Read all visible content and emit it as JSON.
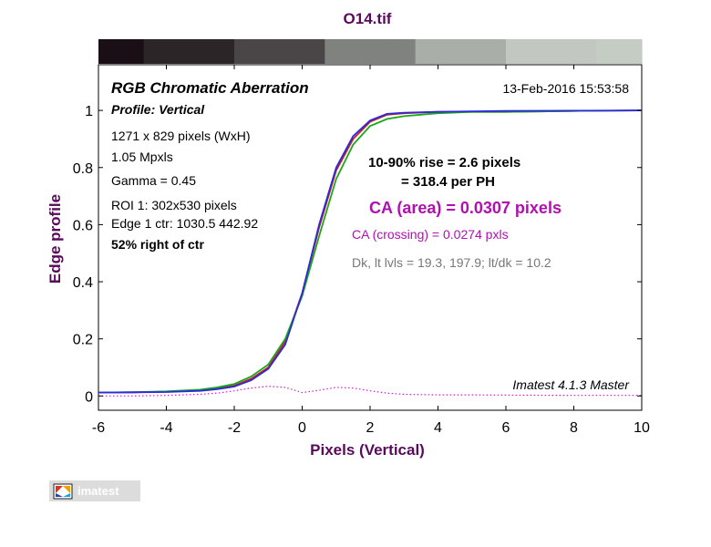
{
  "window": {
    "file_title": "O14.tif"
  },
  "chart_data": {
    "type": "line",
    "title": "O14.tif",
    "xlabel": "Pixels (Vertical)",
    "ylabel": "Edge profile",
    "xlim": [
      -6,
      10
    ],
    "ylim": [
      -0.05,
      1.16
    ],
    "x_ticks": [
      -6,
      -4,
      -2,
      0,
      2,
      4,
      6,
      8,
      10
    ],
    "y_ticks": [
      0,
      0.2,
      0.4,
      0.6,
      0.8,
      1
    ],
    "grid": false,
    "legend": "none",
    "gradient_strip": [
      "#1a0f15",
      "#2c2527",
      "#4a4546",
      "#7f827e",
      "#a9aea8",
      "#c2c8c1",
      "#c5ccc4"
    ],
    "x": [
      -6,
      -5,
      -4,
      -3,
      -2.5,
      -2,
      -1.5,
      -1,
      -0.5,
      0,
      0.5,
      1,
      1.5,
      2,
      2.5,
      3,
      4,
      5,
      6,
      8,
      10
    ],
    "series": [
      {
        "color": "#d01a1a",
        "values": [
          0.012,
          0.013,
          0.015,
          0.02,
          0.026,
          0.036,
          0.06,
          0.1,
          0.19,
          0.36,
          0.59,
          0.79,
          0.9,
          0.96,
          0.985,
          0.99,
          0.995,
          0.995,
          0.995,
          0.998,
          1.0
        ]
      },
      {
        "color": "#18a818",
        "values": [
          0.012,
          0.013,
          0.016,
          0.022,
          0.03,
          0.042,
          0.068,
          0.11,
          0.2,
          0.35,
          0.56,
          0.76,
          0.88,
          0.945,
          0.97,
          0.98,
          0.99,
          0.995,
          0.995,
          0.998,
          1.0
        ]
      },
      {
        "color": "#2a2ae0",
        "values": [
          0.012,
          0.013,
          0.014,
          0.018,
          0.024,
          0.033,
          0.055,
          0.095,
          0.18,
          0.36,
          0.6,
          0.8,
          0.91,
          0.965,
          0.988,
          0.992,
          0.995,
          0.997,
          0.998,
          0.999,
          1.0
        ]
      },
      {
        "color": "#cc20cc",
        "dashed": true,
        "values": [
          0.0,
          0.0,
          0.002,
          0.006,
          0.01,
          0.018,
          0.028,
          0.034,
          0.03,
          0.012,
          0.02,
          0.03,
          0.028,
          0.018,
          0.01,
          0.006,
          0.004,
          0.004,
          0.003,
          0.002,
          0.002
        ]
      }
    ],
    "annotations": {
      "heading": "RGB Chromatic Aberration",
      "profile": "Profile: Vertical",
      "timestamp": "13-Feb-2016 15:53:58",
      "info_lines": [
        "1271 x 829 pixels (WxH)",
        "1.05 Mpxls",
        "Gamma = 0.45",
        "ROI 1: 302x530 pixels",
        "Edge 1 ctr: 1030.5  442.92"
      ],
      "position": "52% right of ctr",
      "rise_line1": "10-90% rise = 2.6 pixels",
      "rise_line2": "= 318.4 per PH",
      "ca_area": "CA (area) = 0.0307 pixels",
      "ca_crossing": "CA (crossing) = 0.0274 pxls",
      "dk_levels": "Dk, lt lvls = 19.3, 197.9;  lt/dk = 10.2",
      "version": "Imatest 4.1.3  Master"
    }
  },
  "logo": {
    "text": "imatest"
  }
}
